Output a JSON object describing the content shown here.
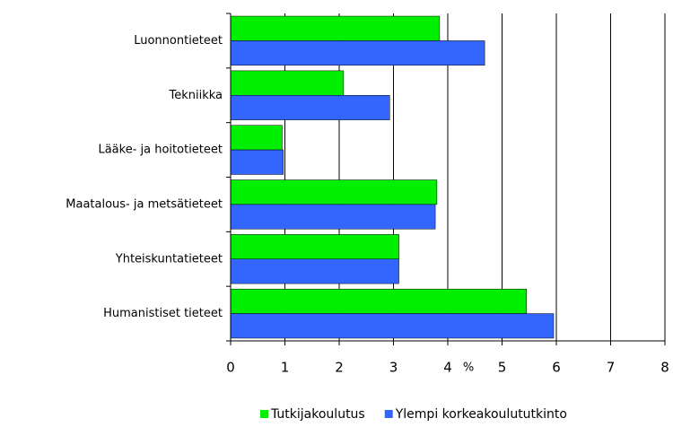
{
  "chart_data": {
    "type": "hbar",
    "categories": [
      "Luonnontieteet",
      "Tekniikka",
      "Lääke- ja hoitotieteet",
      "Maatalous- ja metsätieteet",
      "Yhteiskuntatieteet",
      "Humanistiset tieteet"
    ],
    "series": [
      {
        "name": "Tutkijakoulutus",
        "color": "#00f000",
        "values": [
          3.85,
          2.08,
          0.95,
          3.8,
          3.1,
          5.45
        ]
      },
      {
        "name": "Ylempi korkeakoulututkinto",
        "color": "#3366ff",
        "values": [
          4.68,
          2.93,
          0.97,
          3.77,
          3.1,
          5.95
        ]
      }
    ],
    "xlabel": "%",
    "xlim": [
      0,
      8
    ],
    "xticks": [
      0,
      1,
      2,
      3,
      4,
      5,
      6,
      7,
      8
    ],
    "grid": true,
    "legend": "bottom-right"
  }
}
